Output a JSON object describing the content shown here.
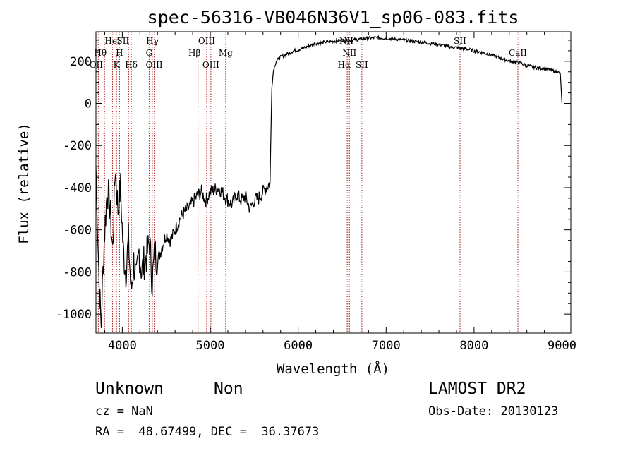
{
  "chart_data": {
    "type": "line",
    "title": "spec-56316-VB046N36V1_sp06-083.fits",
    "xlabel": "Wavelength (Å)",
    "ylabel": "Flux (relative)",
    "xlim": [
      3700,
      9100
    ],
    "ylim": [
      -1090,
      340
    ],
    "xticks": [
      4000,
      5000,
      6000,
      7000,
      8000,
      9000
    ],
    "yticks": [
      -1000,
      -800,
      -600,
      -400,
      -200,
      0,
      200
    ],
    "grid": false,
    "lines": [
      {
        "label": "OII",
        "wavelength": 3727
      },
      {
        "label": "Hθ",
        "wavelength": 3798
      },
      {
        "label": "HeI",
        "wavelength": 3889
      },
      {
        "label": "K",
        "wavelength": 3934
      },
      {
        "label": "H",
        "wavelength": 3968
      },
      {
        "label": "SII",
        "wavelength": 4072
      },
      {
        "label": "Hδ",
        "wavelength": 4102
      },
      {
        "label": "G",
        "wavelength": 4305
      },
      {
        "label": "Hγ",
        "wavelength": 4341
      },
      {
        "label": "OIII",
        "wavelength": 4363
      },
      {
        "label": "Hβ",
        "wavelength": 4861
      },
      {
        "label": "OIII",
        "wavelength": 4959
      },
      {
        "label": "OIII",
        "wavelength": 5007
      },
      {
        "label": "Mg",
        "wavelength": 5175
      },
      {
        "label": "NII",
        "wavelength": 6548
      },
      {
        "label": "Hα",
        "wavelength": 6563
      },
      {
        "label": "NII",
        "wavelength": 6583
      },
      {
        "label": "SII",
        "wavelength": 6724
      },
      {
        "label": "SII",
        "wavelength": 7840
      },
      {
        "label": "CaII",
        "wavelength": 8498
      }
    ],
    "series": [
      {
        "x": [
          3700,
          3720,
          3740,
          3760,
          3780,
          3800,
          3830,
          3860,
          3890,
          3920,
          3950,
          3980,
          4010,
          4040,
          4070,
          4100,
          4130,
          4160,
          4190,
          4220,
          4250,
          4280,
          4310,
          4340,
          4370,
          4400,
          4450,
          4500,
          4550,
          4600,
          4650,
          4700,
          4750,
          4800,
          4850,
          4900,
          4950,
          5000,
          5050,
          5100,
          5150,
          5200,
          5250,
          5300,
          5350,
          5400,
          5450,
          5500,
          5550,
          5600,
          5650,
          5680,
          5700,
          5720,
          5750,
          5800,
          5850,
          5900,
          5950,
          6000,
          6100,
          6200,
          6300,
          6400,
          6500,
          6600,
          6700,
          6800,
          6900,
          7000,
          7100,
          7200,
          7300,
          7400,
          7500,
          7600,
          7700,
          7800,
          7900,
          8000,
          8100,
          8200,
          8300,
          8400,
          8500,
          8600,
          8700,
          8800,
          8900,
          8950,
          8980,
          9000
        ],
        "y": [
          -300,
          -600,
          -900,
          -1050,
          -800,
          -600,
          -400,
          -500,
          -700,
          -300,
          -500,
          -400,
          -700,
          -800,
          -650,
          -900,
          -750,
          -850,
          -700,
          -800,
          -750,
          -720,
          -650,
          -850,
          -700,
          -750,
          -680,
          -620,
          -650,
          -600,
          -550,
          -520,
          -500,
          -470,
          -440,
          -420,
          -460,
          -420,
          -410,
          -400,
          -430,
          -460,
          -480,
          -430,
          -460,
          -440,
          -500,
          -460,
          -450,
          -420,
          -390,
          -380,
          80,
          160,
          200,
          220,
          230,
          240,
          250,
          255,
          270,
          285,
          290,
          295,
          300,
          300,
          305,
          310,
          312,
          310,
          305,
          300,
          295,
          290,
          285,
          280,
          270,
          265,
          260,
          250,
          240,
          230,
          215,
          200,
          195,
          180,
          170,
          165,
          155,
          150,
          140,
          0
        ]
      }
    ]
  },
  "footer": {
    "object_class": "Unknown",
    "subclass": "Non",
    "cz": "cz = NaN",
    "coords": "RA =  48.67499, DEC =  36.37673",
    "survey": "LAMOST DR2",
    "obs_date": "Obs-Date: 20130123"
  }
}
